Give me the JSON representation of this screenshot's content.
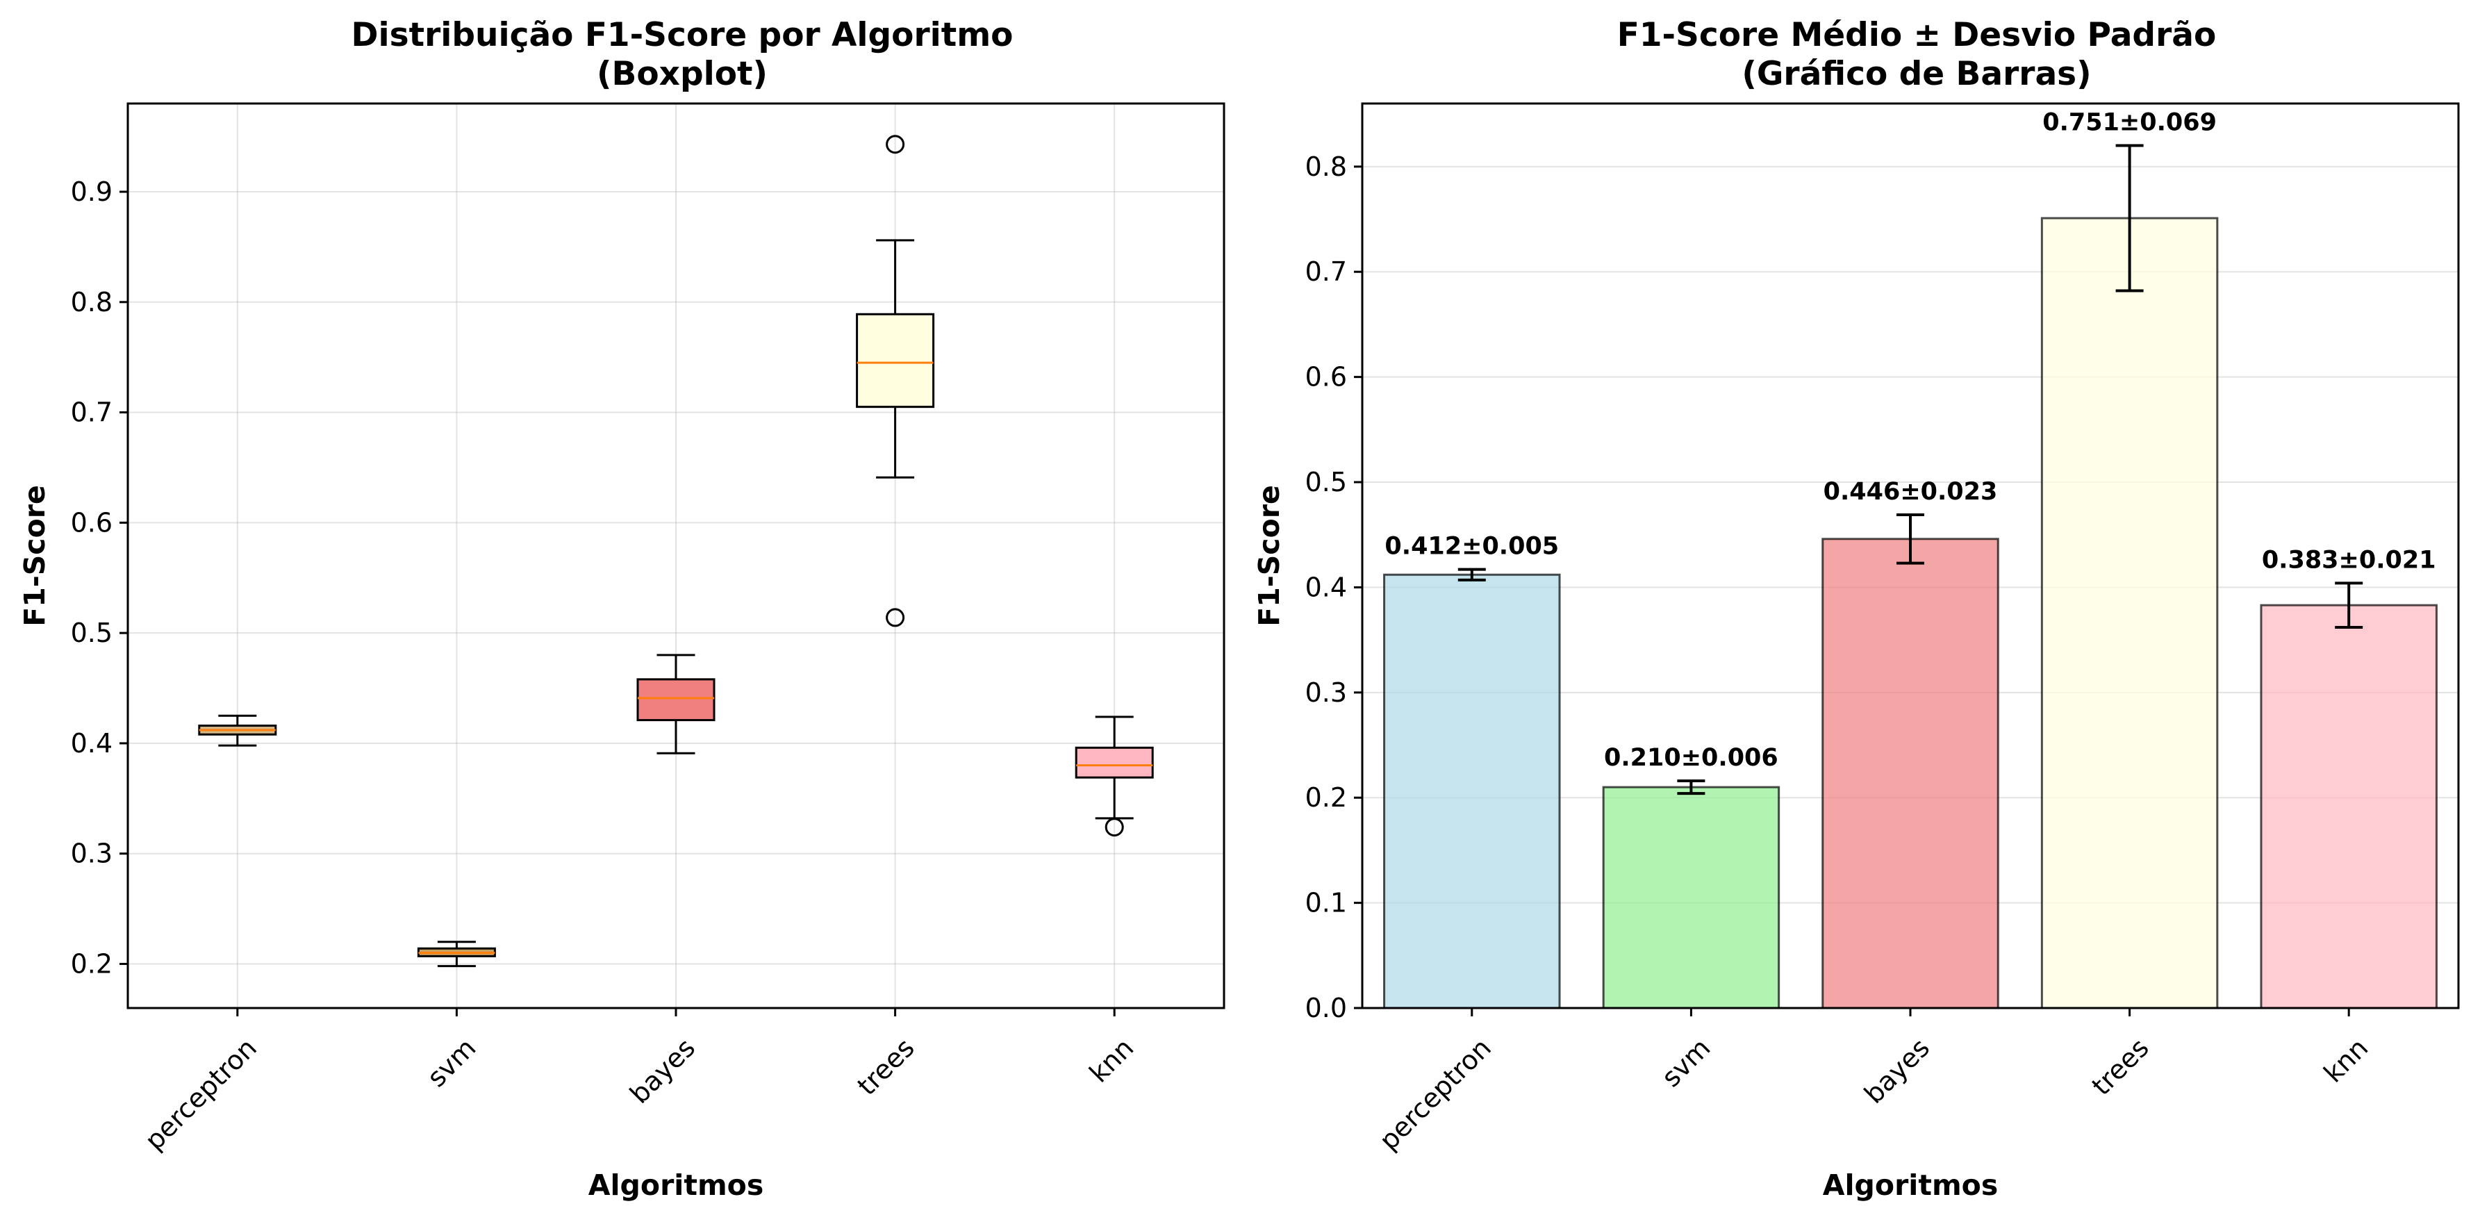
{
  "chart_data": [
    {
      "type": "boxplot",
      "title": "Distribuição F1-Score por Algoritmo",
      "subtitle": "(Boxplot)",
      "xlabel": "Algoritmos",
      "ylabel": "F1-Score",
      "ylim": [
        0.16,
        0.98
      ],
      "yticks": [
        0.2,
        0.3,
        0.4,
        0.5,
        0.6,
        0.7,
        0.8,
        0.9
      ],
      "grid": true,
      "categories": [
        "perceptron",
        "svm",
        "bayes",
        "trees",
        "knn"
      ],
      "boxes": [
        {
          "name": "perceptron",
          "whisker_low": 0.398,
          "q1": 0.408,
          "median": 0.412,
          "q3": 0.416,
          "whisker_high": 0.425,
          "outliers": [],
          "color": "#d4b483"
        },
        {
          "name": "svm",
          "whisker_low": 0.198,
          "q1": 0.207,
          "median": 0.21,
          "q3": 0.214,
          "whisker_high": 0.22,
          "outliers": [],
          "color": "#c8a060"
        },
        {
          "name": "bayes",
          "whisker_low": 0.391,
          "q1": 0.421,
          "median": 0.441,
          "q3": 0.458,
          "whisker_high": 0.48,
          "outliers": [],
          "color": "#f08080"
        },
        {
          "name": "trees",
          "whisker_low": 0.641,
          "q1": 0.705,
          "median": 0.745,
          "q3": 0.789,
          "whisker_high": 0.856,
          "outliers": [
            0.943,
            0.514
          ],
          "color": "#ffffe0"
        },
        {
          "name": "knn",
          "whisker_low": 0.332,
          "q1": 0.369,
          "median": 0.38,
          "q3": 0.396,
          "whisker_high": 0.424,
          "outliers": [
            0.324
          ],
          "color": "#ffb6c1"
        }
      ],
      "median_color": "#ff7f0e"
    },
    {
      "type": "bar",
      "title": "F1-Score Médio ± Desvio Padrão",
      "subtitle": "(Gráfico de Barras)",
      "xlabel": "Algoritmos",
      "ylabel": "F1-Score",
      "ylim": [
        0.0,
        0.86
      ],
      "yticks": [
        0.0,
        0.1,
        0.2,
        0.3,
        0.4,
        0.5,
        0.6,
        0.7,
        0.8
      ],
      "grid": "y",
      "categories": [
        "perceptron",
        "svm",
        "bayes",
        "trees",
        "knn"
      ],
      "values": [
        0.412,
        0.21,
        0.446,
        0.751,
        0.383
      ],
      "errors": [
        0.005,
        0.006,
        0.023,
        0.069,
        0.021
      ],
      "labels": [
        "0.412±0.005",
        "0.210±0.006",
        "0.446±0.023",
        "0.751±0.069",
        "0.383±0.021"
      ],
      "colors": [
        "#add8e6",
        "#90ee90",
        "#f08080",
        "#ffffe0",
        "#ffb6c1"
      ]
    }
  ]
}
